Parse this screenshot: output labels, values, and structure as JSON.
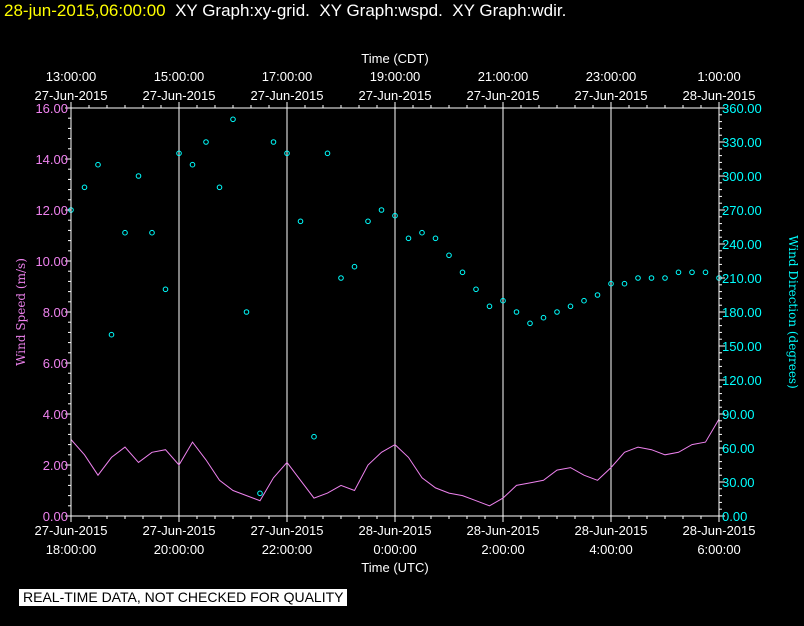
{
  "header": {
    "datetime": "28-jun-2015,06:00:00",
    "graphs": [
      "XY Graph:xy-grid.",
      "XY Graph:wspd.",
      "XY Graph:wdir."
    ]
  },
  "footer": {
    "quality_notice": "REAL-TIME DATA, NOT CHECKED FOR QUALITY"
  },
  "colors": {
    "background": "#000000",
    "frame": "#ffffff",
    "grid": "#ffffff",
    "wind_speed": "#ee82ee",
    "wind_direction": "#00ffff",
    "header_date": "#ffff00"
  },
  "chart_data": {
    "type": "line",
    "top_axis": {
      "title": "Time (CDT)",
      "ticks": [
        {
          "hours": 0,
          "time": "13:00:00",
          "date": "27-Jun-2015"
        },
        {
          "hours": 2,
          "time": "15:00:00",
          "date": "27-Jun-2015"
        },
        {
          "hours": 4,
          "time": "17:00:00",
          "date": "27-Jun-2015"
        },
        {
          "hours": 6,
          "time": "19:00:00",
          "date": "27-Jun-2015"
        },
        {
          "hours": 8,
          "time": "21:00:00",
          "date": "27-Jun-2015"
        },
        {
          "hours": 10,
          "time": "23:00:00",
          "date": "27-Jun-2015"
        },
        {
          "hours": 12,
          "time": "1:00:00",
          "date": "28-Jun-2015"
        }
      ]
    },
    "bottom_axis": {
      "title": "Time (UTC)",
      "ticks": [
        {
          "hours": 0,
          "date": "27-Jun-2015",
          "time": "18:00:00"
        },
        {
          "hours": 2,
          "date": "27-Jun-2015",
          "time": "20:00:00"
        },
        {
          "hours": 4,
          "date": "27-Jun-2015",
          "time": "22:00:00"
        },
        {
          "hours": 6,
          "date": "28-Jun-2015",
          "time": "0:00:00"
        },
        {
          "hours": 8,
          "date": "28-Jun-2015",
          "time": "2:00:00"
        },
        {
          "hours": 10,
          "date": "28-Jun-2015",
          "time": "4:00:00"
        },
        {
          "hours": 12,
          "date": "28-Jun-2015",
          "time": "6:00:00"
        }
      ]
    },
    "x_range_hours": [
      0,
      12
    ],
    "left_axis": {
      "title": "Wind Speed (m/s)",
      "range": [
        0,
        16
      ],
      "ticks": [
        "0.00",
        "2.00",
        "4.00",
        "6.00",
        "8.00",
        "10.00",
        "12.00",
        "14.00",
        "16.00"
      ]
    },
    "right_axis": {
      "title": "Wind Direction (degrees)",
      "range": [
        0,
        360
      ],
      "ticks": [
        "0.00",
        "30.00",
        "60.00",
        "90.00",
        "120.00",
        "150.00",
        "180.00",
        "210.00",
        "240.00",
        "270.00",
        "300.00",
        "330.00",
        "360.00"
      ]
    },
    "series": [
      {
        "name": "Wind Speed",
        "style": "line",
        "unit": "m/s",
        "x": [
          0,
          0.25,
          0.5,
          0.75,
          1,
          1.25,
          1.5,
          1.75,
          2,
          2.25,
          2.5,
          2.75,
          3,
          3.25,
          3.5,
          3.75,
          4,
          4.25,
          4.5,
          4.75,
          5,
          5.25,
          5.5,
          5.75,
          6,
          6.25,
          6.5,
          6.75,
          7,
          7.25,
          7.5,
          7.75,
          8,
          8.25,
          8.5,
          8.75,
          9,
          9.25,
          9.5,
          9.75,
          10,
          10.25,
          10.5,
          10.75,
          11,
          11.25,
          11.5,
          11.75,
          12
        ],
        "y": [
          3.0,
          2.4,
          1.6,
          2.3,
          2.7,
          2.1,
          2.5,
          2.6,
          2.0,
          2.9,
          2.2,
          1.4,
          1.0,
          0.8,
          0.6,
          1.5,
          2.1,
          1.4,
          0.7,
          0.9,
          1.2,
          1.0,
          2.0,
          2.5,
          2.8,
          2.3,
          1.5,
          1.1,
          0.9,
          0.8,
          0.6,
          0.4,
          0.7,
          1.2,
          1.3,
          1.4,
          1.8,
          1.9,
          1.6,
          1.4,
          1.9,
          2.5,
          2.7,
          2.6,
          2.4,
          2.5,
          2.8,
          2.9,
          3.8
        ]
      },
      {
        "name": "Wind Direction",
        "style": "markers",
        "unit": "degrees",
        "x": [
          0,
          0.25,
          0.5,
          0.75,
          1,
          1.25,
          1.5,
          1.75,
          2,
          2.25,
          2.5,
          2.75,
          3,
          3.25,
          3.5,
          3.75,
          4,
          4.25,
          4.5,
          4.75,
          5,
          5.25,
          5.5,
          5.75,
          6,
          6.25,
          6.5,
          6.75,
          7,
          7.25,
          7.5,
          7.75,
          8,
          8.25,
          8.5,
          8.75,
          9,
          9.25,
          9.5,
          9.75,
          10,
          10.25,
          10.5,
          10.75,
          11,
          11.25,
          11.5,
          11.75,
          12
        ],
        "y": [
          270,
          290,
          310,
          160,
          250,
          300,
          250,
          200,
          320,
          310,
          330,
          290,
          350,
          180,
          20,
          330,
          320,
          260,
          70,
          320,
          210,
          220,
          260,
          270,
          265,
          245,
          250,
          245,
          230,
          215,
          200,
          185,
          190,
          180,
          170,
          175,
          180,
          185,
          190,
          195,
          205,
          205,
          210,
          210,
          210,
          215,
          215,
          215,
          210
        ]
      }
    ]
  }
}
